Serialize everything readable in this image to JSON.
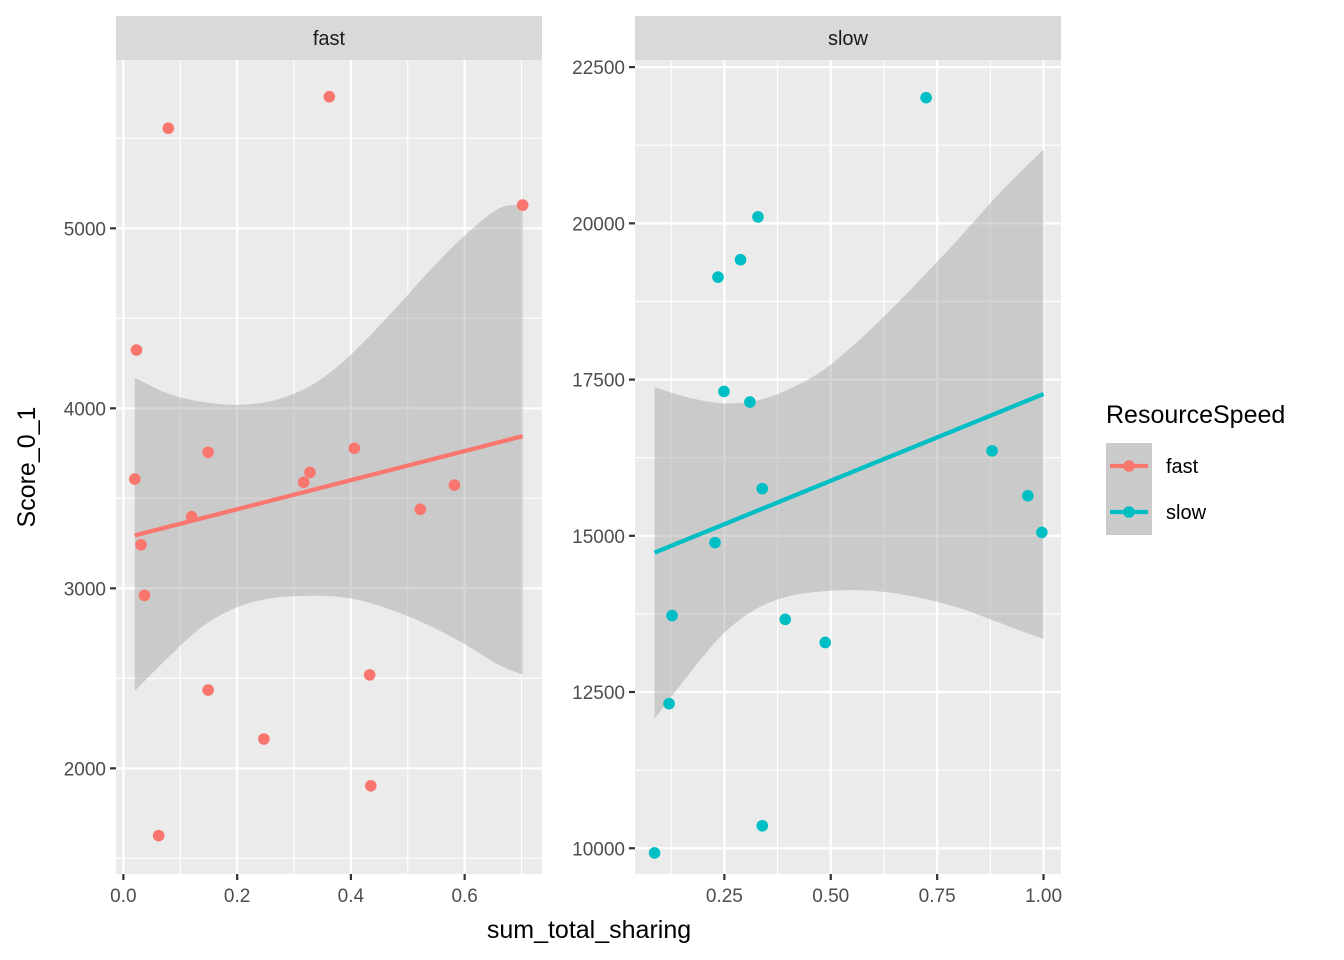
{
  "chart_data": {
    "type": "scatter",
    "title": "",
    "xlabel": "sum_total_sharing",
    "ylabel": "Score_0_1",
    "facet_by": "ResourceSpeed",
    "scales": "free",
    "grid": true,
    "legend": {
      "title": "ResourceSpeed",
      "position": "right",
      "entries": [
        {
          "label": "fast",
          "color": "#F8766D"
        },
        {
          "label": "slow",
          "color": "#00BFC4"
        }
      ]
    },
    "ribbon_color": "#999999",
    "panels": [
      {
        "strip": "fast",
        "color": "#F8766D",
        "xlim": [
          -0.013,
          0.736
        ],
        "ylim": [
          1413,
          5935
        ],
        "x_ticks": [
          0.0,
          0.2,
          0.4,
          0.6
        ],
        "x_tick_labels": [
          "0.0",
          "0.2",
          "0.4",
          "0.6"
        ],
        "y_ticks": [
          2000,
          3000,
          4000,
          5000
        ],
        "y_tick_labels": [
          "2000",
          "3000",
          "4000",
          "5000"
        ],
        "points": [
          {
            "x": 0.079,
            "y": 5556
          },
          {
            "x": 0.362,
            "y": 5731
          },
          {
            "x": 0.702,
            "y": 5129
          },
          {
            "x": 0.023,
            "y": 4324
          },
          {
            "x": 0.02,
            "y": 3607
          },
          {
            "x": 0.149,
            "y": 3756
          },
          {
            "x": 0.12,
            "y": 3398
          },
          {
            "x": 0.031,
            "y": 3242
          },
          {
            "x": 0.037,
            "y": 2961
          },
          {
            "x": 0.317,
            "y": 3589
          },
          {
            "x": 0.328,
            "y": 3644
          },
          {
            "x": 0.406,
            "y": 3778
          },
          {
            "x": 0.522,
            "y": 3439
          },
          {
            "x": 0.582,
            "y": 3574
          },
          {
            "x": 0.149,
            "y": 2435
          },
          {
            "x": 0.247,
            "y": 2163
          },
          {
            "x": 0.433,
            "y": 2519
          },
          {
            "x": 0.435,
            "y": 1903
          },
          {
            "x": 0.062,
            "y": 1626
          }
        ],
        "fit": {
          "x": [
            0.02,
            0.702
          ],
          "y": [
            3294,
            3845
          ]
        },
        "ribbon": {
          "x": [
            0.02,
            0.08,
            0.14,
            0.2,
            0.26,
            0.32,
            0.37,
            0.42,
            0.48,
            0.54,
            0.6,
            0.66,
            0.702
          ],
          "upper": [
            4170,
            4080,
            4035,
            4020,
            4040,
            4110,
            4215,
            4360,
            4560,
            4770,
            4960,
            5110,
            5130
          ],
          "lower": [
            2430,
            2620,
            2790,
            2895,
            2945,
            2958,
            2955,
            2930,
            2870,
            2790,
            2690,
            2575,
            2520
          ]
        }
      },
      {
        "strip": "slow",
        "color": "#00BFC4",
        "xlim": [
          0.04,
          1.041
        ],
        "ylim": [
          9588,
          22614
        ],
        "x_ticks": [
          0.25,
          0.5,
          0.75,
          1.0
        ],
        "x_tick_labels": [
          "0.25",
          "0.50",
          "0.75",
          "1.00"
        ],
        "y_ticks": [
          10000,
          12500,
          15000,
          17500,
          20000,
          22500
        ],
        "y_tick_labels": [
          "10000",
          "12500",
          "15000",
          "17500",
          "20000",
          "22500"
        ],
        "points": [
          {
            "x": 0.724,
            "y": 22011
          },
          {
            "x": 0.329,
            "y": 20103
          },
          {
            "x": 0.288,
            "y": 19418
          },
          {
            "x": 0.235,
            "y": 19140
          },
          {
            "x": 0.249,
            "y": 17310
          },
          {
            "x": 0.31,
            "y": 17140
          },
          {
            "x": 0.879,
            "y": 16359
          },
          {
            "x": 0.339,
            "y": 15755
          },
          {
            "x": 0.963,
            "y": 15641
          },
          {
            "x": 0.996,
            "y": 15054
          },
          {
            "x": 0.228,
            "y": 14891
          },
          {
            "x": 0.127,
            "y": 13723
          },
          {
            "x": 0.393,
            "y": 13663
          },
          {
            "x": 0.487,
            "y": 13293
          },
          {
            "x": 0.12,
            "y": 12314
          },
          {
            "x": 0.339,
            "y": 10360
          },
          {
            "x": 0.086,
            "y": 9925
          }
        ],
        "fit": {
          "x": [
            0.086,
            1.0
          ],
          "y": [
            14730,
            17270
          ]
        },
        "ribbon": {
          "x": [
            0.086,
            0.15,
            0.22,
            0.27,
            0.33,
            0.4,
            0.48,
            0.56,
            0.64,
            0.72,
            0.8,
            0.88,
            0.95,
            1.0
          ],
          "upper": [
            17380,
            17240,
            17140,
            17120,
            17170,
            17340,
            17640,
            18090,
            18610,
            19170,
            19750,
            20360,
            20850,
            21180
          ],
          "lower": [
            12070,
            12640,
            13230,
            13570,
            13850,
            14030,
            14110,
            14130,
            14090,
            13990,
            13850,
            13650,
            13470,
            13350
          ]
        }
      }
    ]
  }
}
